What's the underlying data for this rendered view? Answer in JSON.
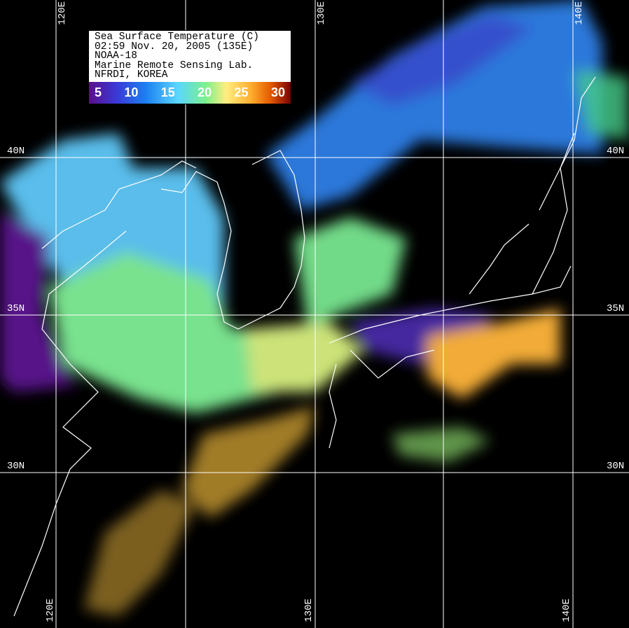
{
  "legend": {
    "title": "Sea Surface Temperature (C)",
    "datetime": "02:59 Nov. 20, 2005 (135E)",
    "satellite": "NOAA-18",
    "lab": "Marine Remote Sensing Lab.",
    "institution": "NFRDI, KOREA",
    "colorbar_ticks": [
      "5",
      "10",
      "15",
      "20",
      "25",
      "30"
    ],
    "colorbar_colors": [
      "#5a0f8a",
      "#1c7ff0",
      "#5ad6ff",
      "#7cf08c",
      "#ffb030",
      "#7a0000"
    ]
  },
  "grid": {
    "lon_labels_top": [
      "120E",
      "130E",
      "140E"
    ],
    "lon_labels_bottom": [
      "120E",
      "130E",
      "140E"
    ],
    "lat_labels_left": [
      "40N",
      "35N",
      "30N"
    ],
    "lat_labels_right": [
      "40N",
      "35N",
      "30N"
    ],
    "line_color": "#ffffff"
  },
  "colors": {
    "background": "#000000",
    "coastline": "#ffffff"
  }
}
